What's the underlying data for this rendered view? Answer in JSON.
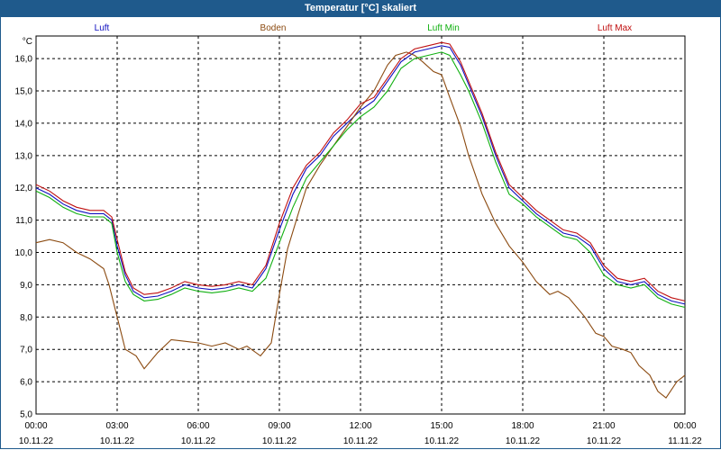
{
  "title": "Temperatur [°C] skaliert",
  "chart_data": {
    "type": "line",
    "ylabel": "°C",
    "ylim": [
      5.0,
      16.7
    ],
    "yticks": [
      "5,0",
      "6,0",
      "7,0",
      "8,0",
      "9,0",
      "10,0",
      "11,0",
      "12,0",
      "13,0",
      "14,0",
      "15,0",
      "16,0"
    ],
    "xlim": [
      0,
      24
    ],
    "xticks": [
      {
        "time": "00:00",
        "date": "10.11.22"
      },
      {
        "time": "03:00",
        "date": "10.11.22"
      },
      {
        "time": "06:00",
        "date": "10.11.22"
      },
      {
        "time": "09:00",
        "date": "10.11.22"
      },
      {
        "time": "12:00",
        "date": "10.11.22"
      },
      {
        "time": "15:00",
        "date": "10.11.22"
      },
      {
        "time": "18:00",
        "date": "10.11.22"
      },
      {
        "time": "21:00",
        "date": "10.11.22"
      },
      {
        "time": "00:00",
        "date": "11.11.22"
      }
    ],
    "grid": true,
    "legend_position": "top",
    "series": [
      {
        "name": "Luft",
        "color": "#1010c0",
        "x": [
          0,
          0.5,
          1,
          1.5,
          2,
          2.5,
          2.8,
          3,
          3.3,
          3.6,
          4,
          4.5,
          5,
          5.5,
          6,
          6.5,
          7,
          7.5,
          8,
          8.5,
          9,
          9.5,
          10,
          10.5,
          11,
          11.5,
          12,
          12.5,
          13,
          13.5,
          14,
          14.5,
          15,
          15.3,
          15.7,
          16,
          16.5,
          17,
          17.5,
          18,
          18.5,
          19,
          19.5,
          20,
          20.5,
          21,
          21.5,
          22,
          22.5,
          23,
          23.5,
          24
        ],
        "y": [
          12.0,
          11.8,
          11.5,
          11.3,
          11.2,
          11.2,
          11.0,
          10.2,
          9.3,
          8.8,
          8.6,
          8.65,
          8.8,
          9.0,
          8.9,
          8.85,
          8.9,
          9.0,
          8.9,
          9.5,
          10.7,
          11.8,
          12.6,
          13.0,
          13.6,
          14.0,
          14.4,
          14.7,
          15.3,
          15.9,
          16.2,
          16.3,
          16.4,
          16.35,
          15.8,
          15.2,
          14.2,
          13.0,
          12.0,
          11.6,
          11.2,
          10.9,
          10.6,
          10.5,
          10.2,
          9.5,
          9.1,
          9.0,
          9.1,
          8.7,
          8.5,
          8.4
        ]
      },
      {
        "name": "Boden",
        "color": "#8b4a10",
        "x": [
          0,
          0.5,
          1,
          1.5,
          2,
          2.5,
          2.7,
          3,
          3.3,
          3.7,
          4,
          4.5,
          5,
          5.5,
          6,
          6.5,
          7,
          7.5,
          7.8,
          8.3,
          8.7,
          9,
          9.3,
          9.7,
          10,
          10.5,
          11,
          11.5,
          12,
          12.5,
          13,
          13.3,
          13.7,
          14,
          14.3,
          14.7,
          15,
          15.3,
          15.7,
          16,
          16.5,
          17,
          17.5,
          18,
          18.5,
          19,
          19.3,
          19.7,
          20,
          20.3,
          20.7,
          21,
          21.3,
          21.7,
          22,
          22.3,
          22.7,
          23,
          23.3,
          23.7,
          24
        ],
        "y": [
          10.3,
          10.4,
          10.3,
          10.0,
          9.8,
          9.5,
          9.0,
          8.0,
          7.0,
          6.8,
          6.4,
          6.9,
          7.3,
          7.25,
          7.2,
          7.1,
          7.2,
          7.0,
          7.1,
          6.8,
          7.2,
          8.7,
          10.1,
          11.2,
          12.0,
          12.7,
          13.3,
          13.9,
          14.5,
          15.0,
          15.8,
          16.1,
          16.2,
          16.1,
          15.9,
          15.6,
          15.5,
          14.8,
          13.9,
          13.0,
          11.8,
          10.9,
          10.2,
          9.7,
          9.1,
          8.7,
          8.8,
          8.6,
          8.3,
          8.0,
          7.5,
          7.4,
          7.1,
          7.0,
          6.9,
          6.5,
          6.2,
          5.7,
          5.5,
          6.0,
          6.2
        ]
      },
      {
        "name": "Luft Min",
        "color": "#10b010",
        "x": [
          0,
          0.5,
          1,
          1.5,
          2,
          2.5,
          2.8,
          3,
          3.3,
          3.6,
          4,
          4.5,
          5,
          5.5,
          6,
          6.5,
          7,
          7.5,
          8,
          8.5,
          9,
          9.5,
          10,
          10.5,
          11,
          11.5,
          12,
          12.5,
          13,
          13.5,
          14,
          14.5,
          15,
          15.3,
          15.7,
          16,
          16.5,
          17,
          17.5,
          18,
          18.5,
          19,
          19.5,
          20,
          20.5,
          21,
          21.5,
          22,
          22.5,
          23,
          23.5,
          24
        ],
        "y": [
          11.9,
          11.7,
          11.4,
          11.2,
          11.1,
          11.1,
          10.9,
          10.0,
          9.1,
          8.7,
          8.5,
          8.55,
          8.7,
          8.9,
          8.8,
          8.75,
          8.8,
          8.9,
          8.8,
          9.2,
          10.3,
          11.4,
          12.3,
          12.8,
          13.3,
          13.8,
          14.2,
          14.5,
          15.0,
          15.7,
          16.0,
          16.1,
          16.2,
          16.1,
          15.5,
          15.0,
          14.0,
          12.8,
          11.8,
          11.5,
          11.1,
          10.8,
          10.5,
          10.4,
          10.0,
          9.3,
          9.0,
          8.9,
          9.0,
          8.6,
          8.4,
          8.3
        ]
      },
      {
        "name": "Luft Max",
        "color": "#c01010",
        "x": [
          0,
          0.5,
          1,
          1.5,
          2,
          2.5,
          2.8,
          3,
          3.3,
          3.6,
          4,
          4.5,
          5,
          5.5,
          6,
          6.5,
          7,
          7.5,
          8,
          8.5,
          9,
          9.5,
          10,
          10.5,
          11,
          11.5,
          12,
          12.5,
          13,
          13.5,
          14,
          14.5,
          15,
          15.3,
          15.7,
          16,
          16.5,
          17,
          17.5,
          18,
          18.5,
          19,
          19.5,
          20,
          20.5,
          21,
          21.5,
          22,
          22.5,
          23,
          23.5,
          24
        ],
        "y": [
          12.1,
          11.9,
          11.6,
          11.4,
          11.3,
          11.3,
          11.1,
          10.4,
          9.4,
          8.9,
          8.7,
          8.75,
          8.9,
          9.1,
          9.0,
          8.95,
          9.0,
          9.1,
          9.0,
          9.6,
          10.9,
          12.0,
          12.7,
          13.1,
          13.7,
          14.1,
          14.6,
          14.8,
          15.4,
          16.0,
          16.3,
          16.4,
          16.5,
          16.45,
          15.9,
          15.3,
          14.3,
          13.1,
          12.1,
          11.7,
          11.3,
          11.0,
          10.7,
          10.6,
          10.3,
          9.6,
          9.2,
          9.1,
          9.2,
          8.8,
          8.6,
          8.5
        ]
      }
    ]
  }
}
